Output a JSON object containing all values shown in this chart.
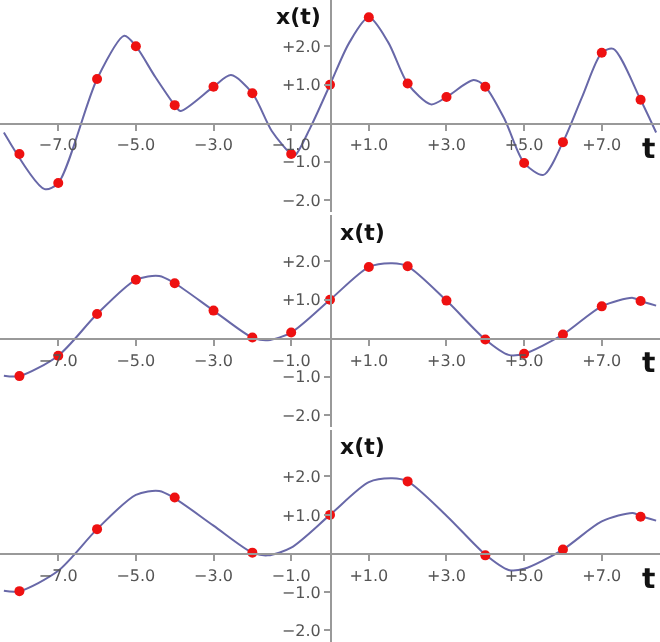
{
  "chart_data": [
    {
      "type": "line",
      "xlabel": "t",
      "ylabel": "x(t)",
      "xlim": [
        -8.5,
        8.5
      ],
      "ylim": [
        -2.3,
        3.2
      ],
      "xticks": [
        {
          "value": -7,
          "label": "−7.0"
        },
        {
          "value": -5,
          "label": "−5.0"
        },
        {
          "value": -3,
          "label": "−3.0"
        },
        {
          "value": -1,
          "label": "−1.0"
        },
        {
          "value": 1,
          "label": "+1.0"
        },
        {
          "value": 3,
          "label": "+3.0"
        },
        {
          "value": 5,
          "label": "+5.0"
        },
        {
          "value": 7,
          "label": "+7.0"
        }
      ],
      "yticks": [
        {
          "value": -2,
          "label": "−2.0"
        },
        {
          "value": -1,
          "label": "−1.0"
        },
        {
          "value": 1,
          "label": "+1.0"
        },
        {
          "value": 2,
          "label": "+2.0"
        }
      ],
      "grid": false,
      "series": [
        {
          "color": "#6868a8",
          "marker": "none",
          "x": [
            -8.4,
            -7.35,
            -7,
            -6,
            -5.3,
            -5,
            -4.5,
            -4,
            -3.85,
            -3,
            -2.55,
            -2,
            -1.5,
            -1,
            -0.9,
            -0.5,
            0,
            0.5,
            1,
            1.5,
            2,
            2.6,
            3,
            3.7,
            4,
            4.5,
            5,
            5.5,
            6,
            6.5,
            7,
            7.3,
            8,
            8.4
          ],
          "values": [
            -0.24,
            -1.71,
            -1.55,
            1.15,
            2.27,
            2.0,
            1.2,
            0.47,
            0.32,
            0.95,
            1.25,
            0.78,
            -0.2,
            -0.8,
            -0.83,
            -0.1,
            1.0,
            2.1,
            2.75,
            2.1,
            1.03,
            0.49,
            0.68,
            1.12,
            0.95,
            0.1,
            -1.03,
            -1.34,
            -0.49,
            0.7,
            1.83,
            1.93,
            0.61,
            -0.24
          ]
        },
        {
          "type": "scatter",
          "color": "#ee1111",
          "marker": "circle",
          "x": [
            -8,
            -7,
            -6,
            -5,
            -4,
            -3,
            -2,
            -1,
            0,
            1,
            2,
            3,
            4,
            5,
            6,
            7,
            8
          ],
          "values": [
            -0.8,
            -1.55,
            1.15,
            2.0,
            0.47,
            0.95,
            0.78,
            -0.8,
            1.0,
            2.75,
            1.03,
            0.68,
            0.95,
            -1.03,
            -0.49,
            1.83,
            0.61
          ]
        }
      ]
    },
    {
      "type": "line",
      "xlabel": "t",
      "ylabel": "x(t)",
      "xlim": [
        -8.5,
        8.5
      ],
      "ylim": [
        -2.3,
        3.2
      ],
      "xticks": [
        {
          "value": -7,
          "label": "−7.0"
        },
        {
          "value": -5,
          "label": "−5.0"
        },
        {
          "value": -3,
          "label": "−3.0"
        },
        {
          "value": -1,
          "label": "−1.0"
        },
        {
          "value": 1,
          "label": "+1.0"
        },
        {
          "value": 3,
          "label": "+3.0"
        },
        {
          "value": 5,
          "label": "+5.0"
        },
        {
          "value": 7,
          "label": "+7.0"
        }
      ],
      "yticks": [
        {
          "value": -2,
          "label": "−2.0"
        },
        {
          "value": -1,
          "label": "−1.0"
        },
        {
          "value": 1,
          "label": "+1.0"
        },
        {
          "value": 2,
          "label": "+2.0"
        }
      ],
      "grid": false,
      "series": [
        {
          "color": "#6868a8",
          "marker": "none",
          "x": [
            -8.4,
            -8,
            -7,
            -6,
            -5,
            -4.4,
            -4,
            -3,
            -2,
            -1.6,
            -1,
            0,
            1,
            1.6,
            2,
            3,
            4,
            4.6,
            5,
            6,
            7,
            7.8,
            8,
            8.4
          ],
          "values": [
            -0.97,
            -0.98,
            -0.45,
            0.63,
            1.52,
            1.62,
            1.43,
            0.72,
            0.02,
            -0.05,
            0.15,
            1.0,
            1.85,
            1.95,
            1.87,
            0.98,
            -0.03,
            -0.43,
            -0.4,
            0.1,
            0.83,
            1.05,
            0.97,
            0.85
          ]
        },
        {
          "type": "scatter",
          "color": "#ee1111",
          "marker": "circle",
          "x": [
            -8,
            -7,
            -6,
            -5,
            -4,
            -3,
            -2,
            -1,
            0,
            1,
            2,
            3,
            4,
            5,
            6,
            7,
            8
          ],
          "values": [
            -0.98,
            -0.45,
            0.63,
            1.52,
            1.43,
            0.72,
            0.02,
            0.15,
            1.0,
            1.85,
            1.87,
            0.98,
            -0.03,
            -0.4,
            0.1,
            0.83,
            0.97
          ]
        }
      ]
    },
    {
      "type": "line",
      "xlabel": "t",
      "ylabel": "x(t)",
      "xlim": [
        -8.5,
        8.5
      ],
      "ylim": [
        -2.3,
        3.2
      ],
      "xticks": [
        {
          "value": -7,
          "label": "−7.0"
        },
        {
          "value": -5,
          "label": "−5.0"
        },
        {
          "value": -3,
          "label": "−3.0"
        },
        {
          "value": -1,
          "label": "−1.0"
        },
        {
          "value": 1,
          "label": "+1.0"
        },
        {
          "value": 3,
          "label": "+3.0"
        },
        {
          "value": 5,
          "label": "+5.0"
        },
        {
          "value": 7,
          "label": "+7.0"
        }
      ],
      "yticks": [
        {
          "value": -2,
          "label": "−2.0"
        },
        {
          "value": -1,
          "label": "−1.0"
        },
        {
          "value": 1,
          "label": "+1.0"
        },
        {
          "value": 2,
          "label": "+2.0"
        }
      ],
      "grid": false,
      "series": [
        {
          "color": "#6868a8",
          "marker": "none",
          "x": [
            -8.4,
            -8,
            -7,
            -6,
            -5,
            -4.4,
            -4,
            -3,
            -2,
            -1.6,
            -1,
            0,
            1,
            1.6,
            2,
            3,
            4,
            4.6,
            5,
            6,
            7,
            7.8,
            8,
            8.4
          ],
          "values": [
            -0.97,
            -0.98,
            -0.45,
            0.63,
            1.52,
            1.62,
            1.43,
            0.72,
            0.02,
            -0.05,
            0.15,
            1.0,
            1.85,
            1.95,
            1.87,
            0.98,
            -0.03,
            -0.43,
            -0.4,
            0.1,
            0.83,
            1.05,
            0.97,
            0.85
          ]
        },
        {
          "type": "scatter",
          "color": "#ee1111",
          "marker": "circle",
          "x": [
            -8,
            -6,
            -4,
            -2,
            0,
            2,
            4,
            6,
            8
          ],
          "values": [
            -0.98,
            0.63,
            1.45,
            0.02,
            1.0,
            1.87,
            -0.05,
            0.1,
            0.95
          ]
        }
      ]
    }
  ]
}
